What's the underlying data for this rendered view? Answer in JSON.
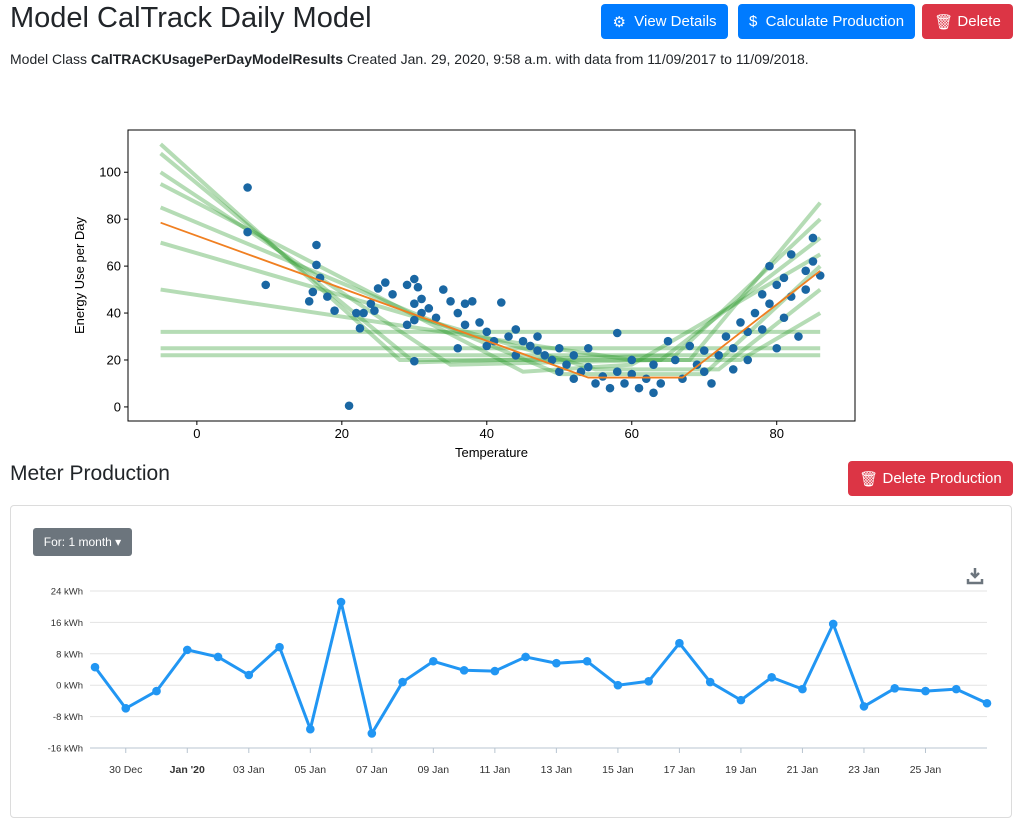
{
  "header": {
    "title": "Model CalTrack Daily Model",
    "buttons": [
      "View Details",
      "Calculate Production",
      "Delete"
    ],
    "description": {
      "prefix": "Model Class",
      "model_class": "CalTRACKUsagePerDayModelResults",
      "suffix": "Created Jan. 29, 2020, 9:58 a.m. with data from 11/09/2017 to 11/09/2018."
    }
  },
  "production": {
    "title": "Meter Production",
    "button": "Delete Production",
    "dropdown": "For: 1 month"
  },
  "chart_data": [
    {
      "type": "scatter",
      "xlabel": "Temperature",
      "ylabel": "Energy Use per Day",
      "xlim": [
        -9.5,
        90.8
      ],
      "ylim": [
        -6,
        118
      ],
      "xticks": [
        0,
        20,
        40,
        60,
        80
      ],
      "yticks": [
        0,
        20,
        40,
        60,
        80,
        100
      ],
      "color": "#1a67a3",
      "x": [
        7,
        7,
        9.5,
        16.5,
        16.5,
        16,
        15.5,
        18,
        19,
        17,
        21,
        22,
        23,
        22.5,
        24,
        25,
        24.5,
        26,
        27,
        29,
        30,
        30.5,
        31,
        30,
        31,
        30,
        29,
        30,
        32,
        33,
        34,
        35,
        36,
        37,
        37,
        38,
        39,
        40,
        41,
        42,
        43,
        44,
        45,
        46,
        47,
        48,
        49,
        50,
        50,
        51,
        52,
        53,
        54,
        55,
        56,
        57,
        58,
        58,
        59,
        60,
        61,
        62,
        63,
        64,
        65,
        66,
        67,
        68,
        69,
        70,
        71,
        72,
        73,
        74,
        75,
        76,
        76,
        77,
        78,
        78,
        79,
        79,
        80,
        80,
        81,
        81,
        82,
        82,
        83,
        84,
        84,
        85,
        85,
        86,
        36,
        44,
        47,
        52,
        60,
        63,
        70,
        74,
        54,
        40
      ],
      "values": [
        93.5,
        74.5,
        52,
        69,
        60.5,
        49,
        45,
        47,
        41,
        55,
        0.5,
        40,
        40,
        33.5,
        44,
        50.5,
        41,
        53,
        48,
        52,
        54.5,
        51,
        46,
        44,
        40,
        37,
        35,
        19.5,
        42,
        38,
        50,
        45,
        40,
        44,
        35,
        45,
        36,
        32,
        28,
        44.5,
        30,
        33,
        28,
        26,
        24,
        22,
        20,
        25,
        15,
        18,
        12,
        15,
        17,
        10,
        13,
        8,
        31.5,
        15,
        10,
        14,
        8,
        12,
        6,
        10,
        28,
        20,
        12,
        26,
        18,
        15,
        10,
        22,
        30,
        25,
        36,
        32,
        20,
        40,
        33,
        48,
        60,
        44,
        52,
        25,
        55,
        38,
        47,
        65,
        30,
        58,
        50,
        72,
        62,
        56,
        25,
        22,
        30,
        22,
        20,
        18,
        24,
        16,
        25,
        26
      ],
      "fit_line": {
        "color": "#f07f21",
        "x": [
          -5,
          54,
          67,
          86
        ],
        "values": [
          78.5,
          12.5,
          12.5,
          58
        ]
      },
      "sample_color": "#2a9a2a",
      "sample_lines": [
        {
          "x": [
            -5,
            28,
            68,
            86
          ],
          "values": [
            112,
            20,
            20,
            87
          ]
        },
        {
          "x": [
            -5,
            30,
            66,
            86
          ],
          "values": [
            108,
            19,
            22,
            80
          ]
        },
        {
          "x": [
            -5,
            35,
            64,
            86
          ],
          "values": [
            100,
            18,
            20,
            72
          ]
        },
        {
          "x": [
            -5,
            45,
            60,
            86
          ],
          "values": [
            95,
            15,
            18,
            65
          ]
        },
        {
          "x": [
            -5,
            50,
            70,
            86
          ],
          "values": [
            85,
            14,
            14,
            60
          ]
        },
        {
          "x": [
            -5,
            55,
            72,
            86
          ],
          "values": [
            70,
            16,
            16,
            50
          ]
        },
        {
          "x": [
            -5,
            60,
            75,
            86
          ],
          "values": [
            50,
            20,
            20,
            40
          ]
        },
        {
          "x": [
            -5,
            86
          ],
          "values": [
            32,
            32
          ]
        },
        {
          "x": [
            -5,
            86
          ],
          "values": [
            25,
            25
          ]
        },
        {
          "x": [
            -5,
            86
          ],
          "values": [
            22,
            22
          ]
        }
      ]
    },
    {
      "type": "line",
      "color": "#2196f3",
      "grid": true,
      "ylim": [
        -16,
        24
      ],
      "yticks": [
        {
          "value": -16,
          "label": "-16 kWh"
        },
        {
          "value": -8,
          "label": "-8 kWh"
        },
        {
          "value": 0,
          "label": "0 kWh"
        },
        {
          "value": 8,
          "label": "8 kWh"
        },
        {
          "value": 16,
          "label": "16 kWh"
        },
        {
          "value": 24,
          "label": "24 kWh"
        }
      ],
      "categories": [
        null,
        "30 Dec",
        null,
        "Jan '20",
        null,
        "03 Jan",
        null,
        "05 Jan",
        null,
        "07 Jan",
        null,
        "09 Jan",
        null,
        "11 Jan",
        null,
        "13 Jan",
        null,
        "15 Jan",
        null,
        "17 Jan",
        null,
        "19 Jan",
        null,
        "21 Jan",
        null,
        "23 Jan",
        null,
        "25 Jan",
        null,
        null
      ],
      "values": [
        4.6,
        -5.9,
        -1.5,
        9,
        7.2,
        2.6,
        9.7,
        -11.2,
        21.2,
        -12.3,
        0.8,
        6.1,
        3.8,
        3.6,
        7.2,
        5.6,
        6.1,
        0,
        1,
        10.7,
        0.8,
        -3.8,
        2,
        -1,
        15.6,
        -5.4,
        -0.8,
        -1.5,
        -1,
        -4.6
      ]
    }
  ]
}
